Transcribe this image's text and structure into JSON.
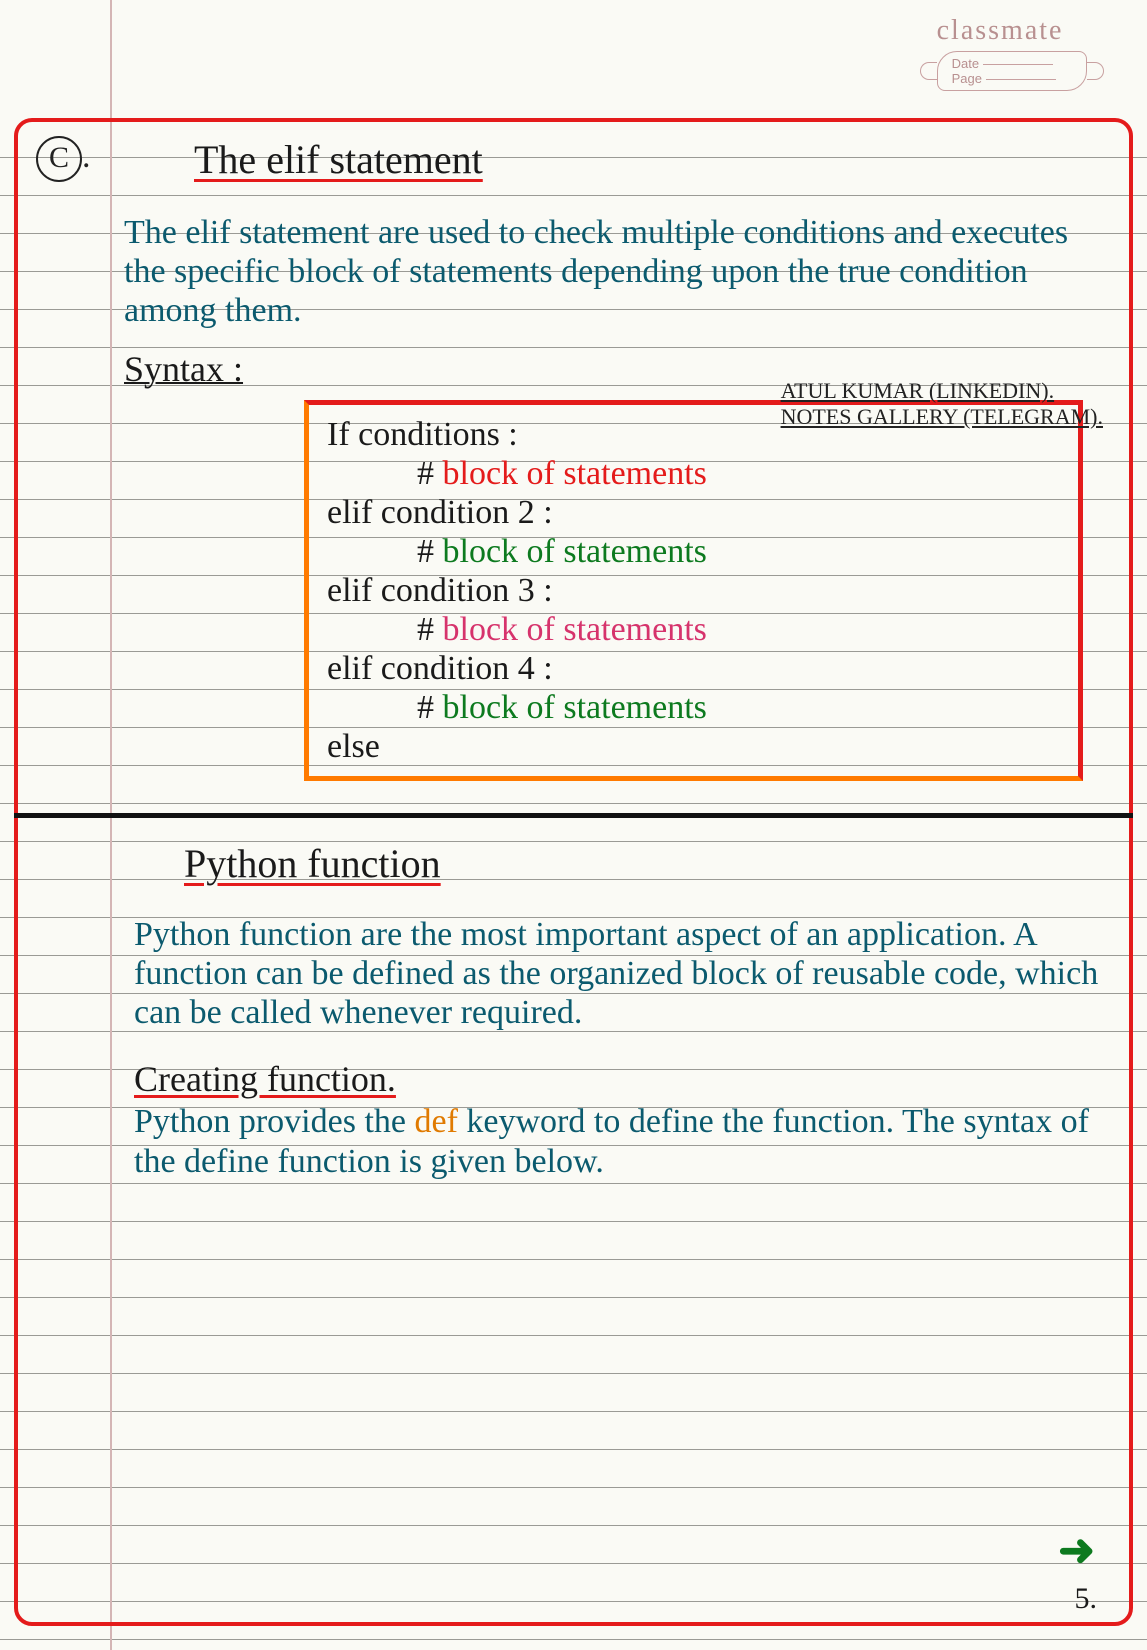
{
  "header": {
    "brand": "classmate",
    "date_label": "Date",
    "page_label": "Page"
  },
  "section1": {
    "bullet": "C",
    "bullet_suffix": ".",
    "title": "The  elif  statement",
    "paragraph": "The elif statement are used to check multiple conditions and executes the specific block of statements depending upon the true condition among them.",
    "syntax_label": "Syntax :",
    "credits_line1": "ATUL KUMAR (LINKEDIN).",
    "credits_line2": "NOTES GALLERY (TELEGRAM).",
    "code": {
      "l1": "If conditions :",
      "l2_hash": "#",
      "l2_text": " block of statements",
      "l3": "elif condition 2 :",
      "l4_hash": "#",
      "l4_text": " block of statements",
      "l5": "elif condition 3 :",
      "l6_hash": "#",
      "l6_text": " block of statements",
      "l7": "elif condition 4 :",
      "l8_hash": "#",
      "l8_text": " block of statements",
      "l9": "else"
    }
  },
  "section2": {
    "title": "Python  function",
    "paragraph": "Python function are the most important aspect of an application. A function can be defined as the organized block of reusable code, which can be called whenever required.",
    "subhead": "Creating function.",
    "para2_pre": "Python provides the ",
    "para2_kw": "def",
    "para2_post": " keyword to define the function. The syntax of the define function is given below."
  },
  "page_number": "5.",
  "colors": {
    "paper": "#fafaf5",
    "rule": "#9a9a95",
    "margin": "#d4b5b5",
    "border": "#e41b1b",
    "orange": "#ff7a00",
    "ink_black": "#1a1a1a",
    "ink_teal": "#0b5a6e",
    "green": "#0d7a1f",
    "pink": "#d6336c",
    "header_pink": "#b89090"
  }
}
